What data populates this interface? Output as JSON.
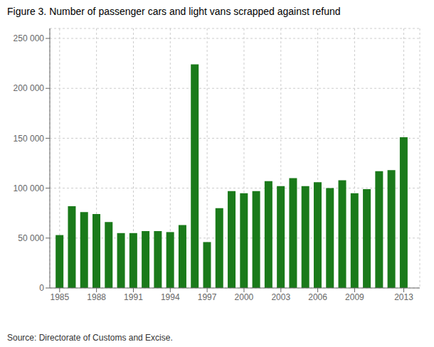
{
  "chart_data": {
    "type": "bar",
    "title": "Figure 3. Number of passenger cars and light vans scrapped against refund",
    "x": [
      1985,
      1986,
      1987,
      1988,
      1989,
      1990,
      1991,
      1992,
      1993,
      1994,
      1995,
      1996,
      1997,
      1998,
      1999,
      2000,
      2001,
      2002,
      2003,
      2004,
      2005,
      2006,
      2007,
      2008,
      2009,
      2010,
      2011,
      2012,
      2013
    ],
    "values": [
      53000,
      82000,
      76000,
      74000,
      66000,
      55000,
      55000,
      57000,
      57000,
      56000,
      63000,
      224000,
      46000,
      80000,
      97000,
      95000,
      97000,
      107000,
      102000,
      110000,
      102000,
      106000,
      100000,
      108000,
      95000,
      99000,
      117000,
      118000,
      151000
    ],
    "color": "#1a7a1a",
    "xlim": [
      1984.2,
      2014.3
    ],
    "xticks": [
      1985,
      1988,
      1991,
      1994,
      1997,
      2000,
      2003,
      2006,
      2009,
      2013
    ],
    "ylim": [
      0,
      260000
    ],
    "yticks": [
      0,
      {
        "value": 50000,
        "label": "50 000"
      },
      {
        "value": 100000,
        "label": "100 000"
      },
      {
        "value": 150000,
        "label": "150 000"
      },
      {
        "value": 200000,
        "label": "200 000"
      },
      {
        "value": 250000,
        "label": "250 000"
      }
    ],
    "grid": true,
    "annotations": [
      "Source: Directorate of Customs and Excise."
    ]
  }
}
